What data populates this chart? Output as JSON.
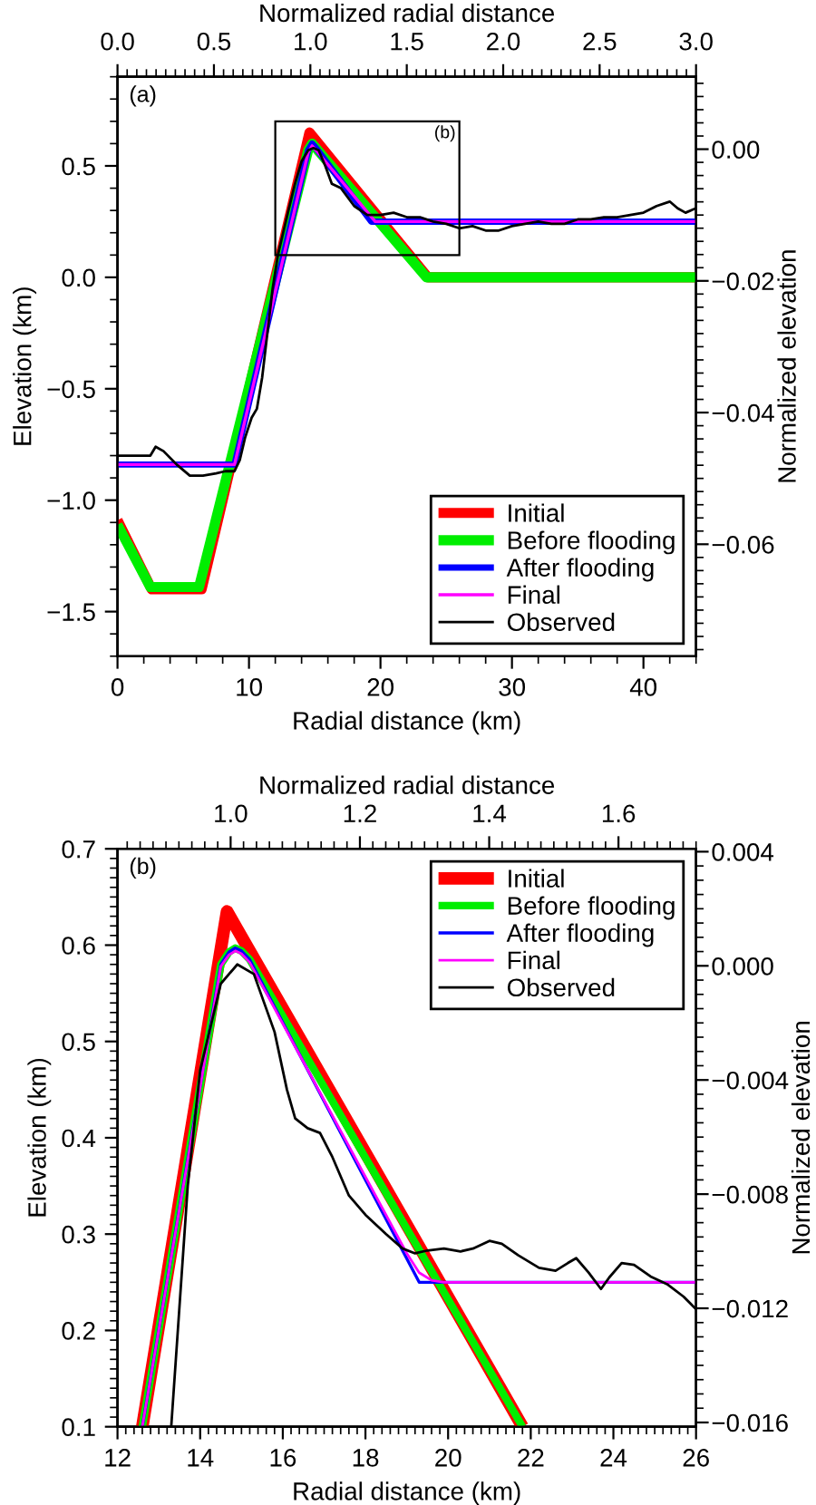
{
  "chart_data": [
    {
      "type": "line",
      "xlabel": "Radial distance (km)",
      "ylabel": "Elevation (km)",
      "x2label": "Normalized radial distance",
      "y2label": "Normalized elevation",
      "xlim": [
        0,
        44
      ],
      "ylim": [
        -1.7,
        0.9
      ],
      "xticks": [
        0,
        10,
        20,
        30,
        40
      ],
      "yticks": [
        {
          "value": -1.5,
          "label": "−1.5"
        },
        {
          "value": -1.0,
          "label": "−1.0"
        },
        {
          "value": -0.5,
          "label": "−0.5"
        },
        {
          "value": 0.0,
          "label": "0.0"
        },
        {
          "value": 0.5,
          "label": "0.5"
        }
      ],
      "x2lim": [
        0,
        3.0
      ],
      "x2ticks": [
        {
          "value": 0,
          "label": "0.0"
        },
        {
          "value": 0.5,
          "label": "0.5"
        },
        {
          "value": 1.0,
          "label": "1.0"
        },
        {
          "value": 1.5,
          "label": "1.5"
        },
        {
          "value": 2.0,
          "label": "2.0"
        },
        {
          "value": 2.5,
          "label": "2.5"
        },
        {
          "value": 3.0,
          "label": "3.0"
        }
      ],
      "y2lim": [
        -0.077,
        0.011
      ],
      "y2ticks": [
        {
          "value": -0.06,
          "label": "−0.06"
        },
        {
          "value": -0.04,
          "label": "−0.04"
        },
        {
          "value": -0.02,
          "label": "−0.02"
        },
        {
          "value": 0.0,
          "label": "0.00"
        }
      ],
      "legend": "bottom right",
      "grid": false,
      "annotations": [
        "(a)",
        "(b)"
      ],
      "series": [
        {
          "name": "Initial",
          "color": "#ff0000",
          "x": [
            0,
            2.6,
            6.4,
            14.6,
            23.6,
            44
          ],
          "values": [
            -1.09,
            -1.4,
            -1.4,
            0.65,
            0.0,
            0.0
          ]
        },
        {
          "name": "Before flooding",
          "color": "#00ee00",
          "x": [
            0,
            2.5,
            6.2,
            14.5,
            14.8,
            15.1,
            23.5,
            44
          ],
          "values": [
            -1.11,
            -1.39,
            -1.39,
            0.57,
            0.6,
            0.58,
            0.0,
            0.0
          ]
        },
        {
          "name": "After flooding",
          "color": "#0000ff",
          "x": [
            0,
            8.9,
            14.5,
            14.8,
            15.1,
            19.3,
            44
          ],
          "values": [
            -0.84,
            -0.84,
            0.57,
            0.6,
            0.58,
            0.25,
            0.25
          ]
        },
        {
          "name": "Final",
          "color": "#ff00ff",
          "x": [
            0,
            8.9,
            14.5,
            14.8,
            15.1,
            19.6,
            44
          ],
          "values": [
            -0.84,
            -0.84,
            0.56,
            0.59,
            0.57,
            0.25,
            0.25
          ]
        },
        {
          "name": "Observed",
          "color": "#000000",
          "x": [
            0,
            2.5,
            2.9,
            3.5,
            4.5,
            5.5,
            6.5,
            7.5,
            8.2,
            8.9,
            9.3,
            9.7,
            10.2,
            10.6,
            11.0,
            11.4,
            11.8,
            12.2,
            12.6,
            13.0,
            13.5,
            14.0,
            14.5,
            14.9,
            15.3,
            15.8,
            16.3,
            17.0,
            18.0,
            19.0,
            20.0,
            21.0,
            22.0,
            23.0,
            24.0,
            25.0,
            26.0,
            27.0,
            28.0,
            29.0,
            30.0,
            31.0,
            32.0,
            33.0,
            34.0,
            35.0,
            36.0,
            37.0,
            38.0,
            39.0,
            40.0,
            41.0,
            42.0,
            42.6,
            43.2,
            44.0
          ],
          "values": [
            -0.8,
            -0.8,
            -0.76,
            -0.78,
            -0.84,
            -0.89,
            -0.89,
            -0.88,
            -0.87,
            -0.87,
            -0.82,
            -0.72,
            -0.63,
            -0.59,
            -0.45,
            -0.25,
            -0.05,
            0.1,
            0.2,
            0.3,
            0.42,
            0.52,
            0.57,
            0.58,
            0.57,
            0.5,
            0.42,
            0.4,
            0.32,
            0.28,
            0.28,
            0.29,
            0.27,
            0.27,
            0.25,
            0.24,
            0.22,
            0.23,
            0.21,
            0.21,
            0.23,
            0.24,
            0.25,
            0.24,
            0.24,
            0.26,
            0.26,
            0.27,
            0.27,
            0.28,
            0.29,
            0.32,
            0.34,
            0.31,
            0.29,
            0.31
          ]
        }
      ]
    },
    {
      "type": "line",
      "xlabel": "Radial distance (km)",
      "ylabel": "Elevation (km)",
      "x2label": "Normalized radial distance",
      "y2label": "Normalized elevation",
      "xlim": [
        12,
        26
      ],
      "ylim": [
        0.1,
        0.7
      ],
      "xticks": [
        12,
        14,
        16,
        18,
        20,
        22,
        24,
        26
      ],
      "yticks": [
        0.1,
        0.2,
        0.3,
        0.4,
        0.5,
        0.6,
        0.7
      ],
      "x2lim": [
        0.825,
        1.72
      ],
      "x2ticks": [
        {
          "value": 1.0,
          "label": "1.0"
        },
        {
          "value": 1.2,
          "label": "1.2"
        },
        {
          "value": 1.4,
          "label": "1.4"
        },
        {
          "value": 1.6,
          "label": "1.6"
        }
      ],
      "y2lim": [
        -0.01615,
        0.0041
      ],
      "y2ticks": [
        {
          "value": -0.016,
          "label": "−0.016"
        },
        {
          "value": -0.012,
          "label": "−0.012"
        },
        {
          "value": -0.008,
          "label": "−0.008"
        },
        {
          "value": -0.004,
          "label": "−0.004"
        },
        {
          "value": 0.0,
          "label": "0.000"
        },
        {
          "value": 0.004,
          "label": "0.004"
        }
      ],
      "legend": "top right",
      "grid": false,
      "annotations": [
        "(b)"
      ],
      "series": [
        {
          "name": "Initial",
          "color": "#ff0000",
          "x": [
            12.6,
            14.65,
            21.8
          ],
          "values": [
            0.1,
            0.635,
            0.1
          ]
        },
        {
          "name": "Before flooding",
          "color": "#00ee00",
          "x": [
            12.6,
            14.5,
            14.7,
            14.85,
            15.0,
            15.2,
            21.8
          ],
          "values": [
            0.1,
            0.58,
            0.593,
            0.597,
            0.594,
            0.585,
            0.1
          ]
        },
        {
          "name": "After flooding",
          "color": "#0000ff",
          "x": [
            12.6,
            14.5,
            14.7,
            14.85,
            15.0,
            15.2,
            19.3,
            26
          ],
          "values": [
            0.1,
            0.58,
            0.593,
            0.597,
            0.594,
            0.585,
            0.25,
            0.25
          ]
        },
        {
          "name": "Final",
          "color": "#ff00ff",
          "x": [
            12.6,
            14.5,
            14.7,
            14.85,
            15.0,
            15.2,
            19.0,
            19.3,
            19.6,
            19.9,
            26
          ],
          "values": [
            0.1,
            0.578,
            0.59,
            0.594,
            0.591,
            0.582,
            0.28,
            0.26,
            0.252,
            0.25,
            0.25
          ]
        },
        {
          "name": "Observed",
          "color": "#000000",
          "x": [
            13.3,
            13.7,
            14.0,
            14.5,
            14.9,
            15.3,
            15.8,
            16.1,
            16.3,
            16.6,
            16.9,
            17.2,
            17.6,
            18.0,
            18.5,
            18.9,
            19.2,
            19.5,
            19.9,
            20.3,
            20.6,
            21.0,
            21.3,
            21.7,
            22.2,
            22.6,
            22.9,
            23.1,
            23.4,
            23.7,
            23.9,
            24.2,
            24.5,
            24.9,
            25.3,
            25.7,
            26.0
          ],
          "values": [
            0.1,
            0.35,
            0.47,
            0.56,
            0.58,
            0.57,
            0.51,
            0.45,
            0.42,
            0.41,
            0.405,
            0.38,
            0.34,
            0.32,
            0.3,
            0.285,
            0.28,
            0.283,
            0.285,
            0.282,
            0.285,
            0.293,
            0.29,
            0.278,
            0.265,
            0.262,
            0.27,
            0.275,
            0.26,
            0.243,
            0.255,
            0.27,
            0.268,
            0.256,
            0.248,
            0.235,
            0.222
          ]
        }
      ]
    }
  ]
}
